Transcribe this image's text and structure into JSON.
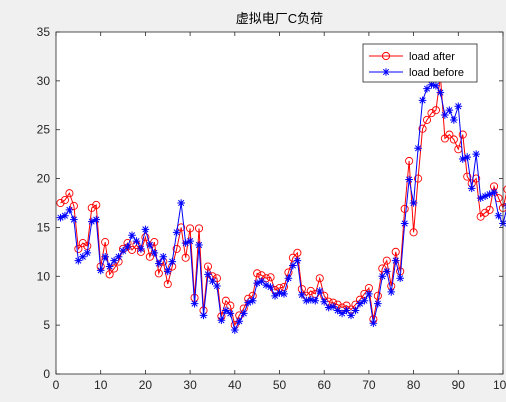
{
  "chart_data": {
    "type": "line",
    "title": "虚拟电厂C负荷",
    "xlabel": "",
    "ylabel": "",
    "xlim": [
      0,
      100
    ],
    "ylim": [
      0,
      35
    ],
    "x_ticks": [
      0,
      10,
      20,
      30,
      40,
      50,
      60,
      70,
      80,
      90,
      100
    ],
    "y_ticks": [
      0,
      5,
      10,
      15,
      20,
      25,
      30,
      35
    ],
    "grid": false,
    "legend_position": "top-right",
    "series": [
      {
        "name": "load after",
        "color": "#ff0000",
        "marker": "circle",
        "values": [
          17.5,
          17.8,
          18.5,
          17.2,
          12.8,
          13.4,
          13.1,
          17.0,
          17.3,
          11.0,
          13.5,
          10.2,
          10.8,
          11.5,
          12.8,
          13.4,
          12.7,
          13.2,
          12.5,
          14.0,
          12.0,
          13.5,
          10.3,
          11.5,
          9.2,
          11.0,
          12.8,
          15.0,
          11.9,
          14.9,
          7.8,
          14.9,
          6.5,
          11.0,
          10.0,
          9.8,
          5.9,
          7.5,
          7.0,
          5.0,
          6.0,
          6.7,
          7.7,
          8.0,
          10.3,
          10.1,
          9.8,
          9.9,
          8.6,
          8.8,
          8.9,
          10.4,
          11.9,
          12.4,
          8.7,
          8.0,
          8.5,
          8.2,
          9.8,
          8.0,
          7.4,
          7.3,
          7.1,
          6.8,
          7.0,
          6.6,
          7.1,
          7.6,
          8.2,
          8.8,
          5.6,
          8.0,
          10.8,
          11.6,
          9.0,
          12.5,
          10.5,
          16.9,
          21.8,
          14.5,
          20.0,
          25.1,
          26.0,
          26.7,
          27.0,
          30.5,
          24.1,
          24.5,
          24.0,
          23.0,
          24.5,
          20.2,
          19.5,
          20.0,
          16.1,
          16.5,
          16.8,
          19.2,
          18.0,
          17.0,
          18.9
        ]
      },
      {
        "name": "load before",
        "color": "#0000ff",
        "marker": "star",
        "values": [
          16.0,
          16.2,
          16.8,
          15.8,
          11.6,
          12.0,
          12.4,
          15.6,
          15.8,
          10.6,
          12.0,
          11.0,
          11.6,
          12.0,
          12.6,
          13.0,
          14.2,
          13.6,
          12.8,
          14.8,
          13.2,
          12.4,
          11.3,
          12.0,
          10.5,
          11.5,
          14.5,
          17.5,
          13.4,
          13.6,
          7.2,
          13.2,
          6.0,
          10.2,
          9.5,
          9.0,
          5.5,
          6.5,
          6.2,
          4.5,
          5.4,
          6.2,
          7.3,
          7.5,
          9.3,
          9.5,
          9.1,
          8.9,
          8.0,
          8.3,
          8.2,
          9.8,
          11.1,
          11.6,
          8.1,
          7.5,
          7.6,
          7.5,
          8.5,
          7.4,
          6.8,
          6.9,
          6.5,
          6.2,
          6.5,
          6.0,
          6.5,
          7.2,
          7.5,
          8.2,
          5.2,
          7.2,
          10.0,
          10.5,
          8.4,
          11.6,
          9.8,
          15.4,
          19.9,
          17.5,
          23.1,
          28.0,
          29.2,
          29.6,
          29.5,
          28.8,
          26.5,
          27.0,
          26.0,
          27.4,
          22.0,
          22.2,
          19.0,
          22.5,
          18.0,
          18.2,
          18.4,
          18.6,
          16.2,
          15.4,
          17.2
        ]
      }
    ]
  }
}
